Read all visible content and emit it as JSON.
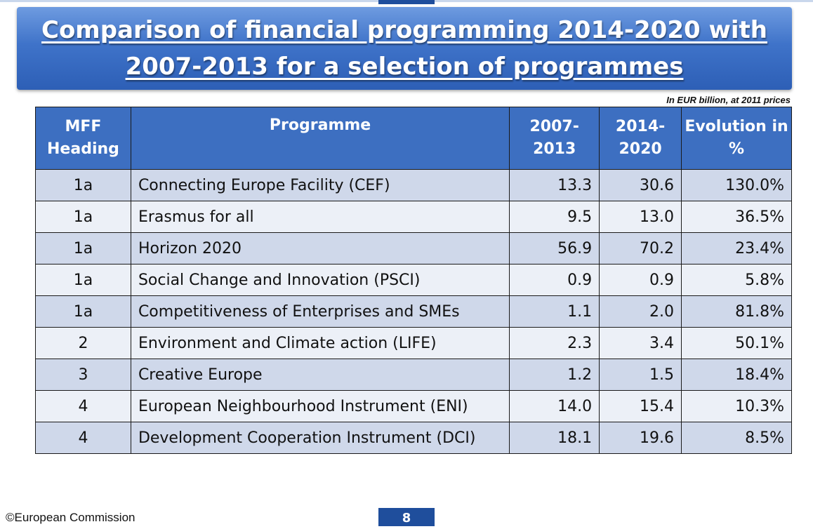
{
  "slide": {
    "title_line1": "Comparison of financial programming 2014-2020 with",
    "title_line2": "2007-2013 for a selection of programmes",
    "units_note": "In EUR billion, at 2011 prices",
    "footer": "©European Commission",
    "page_number": "8"
  },
  "table": {
    "headers": {
      "mff": "MFF Heading",
      "programme": "Programme",
      "p2007": "2007- 2013",
      "p2014": "2014- 2020",
      "evolution": "Evolution in %"
    },
    "rows": [
      {
        "mff": "1a",
        "programme": "Connecting Europe Facility (CEF)",
        "v2007": "13.3",
        "v2014": "30.6",
        "evolution": "130.0%"
      },
      {
        "mff": "1a",
        "programme": "Erasmus for all",
        "v2007": "9.5",
        "v2014": "13.0",
        "evolution": "36.5%"
      },
      {
        "mff": "1a",
        "programme": "Horizon 2020",
        "v2007": "56.9",
        "v2014": "70.2",
        "evolution": "23.4%"
      },
      {
        "mff": "1a",
        "programme": "Social Change and Innovation (PSCI)",
        "v2007": "0.9",
        "v2014": "0.9",
        "evolution": "5.8%"
      },
      {
        "mff": "1a",
        "programme": "Competitiveness of Enterprises and SMEs",
        "v2007": "1.1",
        "v2014": "2.0",
        "evolution": "81.8%"
      },
      {
        "mff": "2",
        "programme": "Environment and Climate action (LIFE)",
        "v2007": "2.3",
        "v2014": "3.4",
        "evolution": "50.1%"
      },
      {
        "mff": "3",
        "programme": "Creative Europe",
        "v2007": "1.2",
        "v2014": "1.5",
        "evolution": "18.4%"
      },
      {
        "mff": "4",
        "programme": "European Neighbourhood Instrument (ENI)",
        "v2007": "14.0",
        "v2014": "15.4",
        "evolution": "10.3%"
      },
      {
        "mff": "4",
        "programme": "Development Cooperation Instrument (DCI)",
        "v2007": "18.1",
        "v2014": "19.6",
        "evolution": "8.5%"
      }
    ]
  },
  "colors": {
    "header_blue": "#3d6fc1",
    "title_blue": "#2d5fb6",
    "row_shade": "#cfd8ea",
    "row_plain": "#ecf0f7",
    "page_tab": "#1f4e9c"
  }
}
